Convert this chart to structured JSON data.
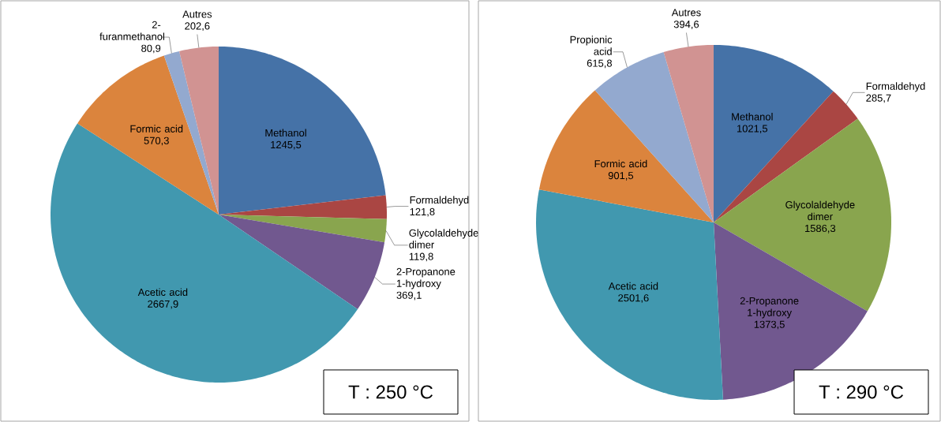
{
  "chart_data": [
    {
      "type": "pie",
      "title": "T : 250 °C",
      "categories": [
        "Methanol",
        "Formaldehyd",
        "Glycolaldehyde dimer",
        "2-Propanone 1-hydroxy",
        "Acetic acid",
        "Formic acid",
        "2-furanmethanol",
        "Autres"
      ],
      "values": [
        1245.5,
        121.8,
        119.8,
        369.1,
        2667.9,
        570.3,
        80.9,
        202.6
      ],
      "value_labels": [
        "1245,5",
        "121,8",
        "119,8",
        "369,1",
        "2667,9",
        "570,3",
        "80,9",
        "202,6"
      ],
      "colors": [
        "#4572a7",
        "#aa4643",
        "#89a54e",
        "#71588f",
        "#4198af",
        "#db843d",
        "#93a9cf",
        "#d19392"
      ]
    },
    {
      "type": "pie",
      "title": "T : 290 °C",
      "categories": [
        "Methanol",
        "Formaldehyd",
        "Glycolaldehyde dimer",
        "2-Propanone 1-hydroxy",
        "Acetic acid",
        "Formic acid",
        "Propionic acid",
        "Autres"
      ],
      "values": [
        1021.5,
        285.7,
        1586.3,
        1373.5,
        2501.6,
        901.5,
        615.8,
        394.6
      ],
      "value_labels": [
        "1021,5",
        "285,7",
        "1586,3",
        "1373,5",
        "2501,6",
        "901,5",
        "615,8",
        "394,6"
      ],
      "colors": [
        "#4572a7",
        "#aa4643",
        "#89a54e",
        "#71588f",
        "#4198af",
        "#db843d",
        "#93a9cf",
        "#d19392"
      ]
    }
  ]
}
